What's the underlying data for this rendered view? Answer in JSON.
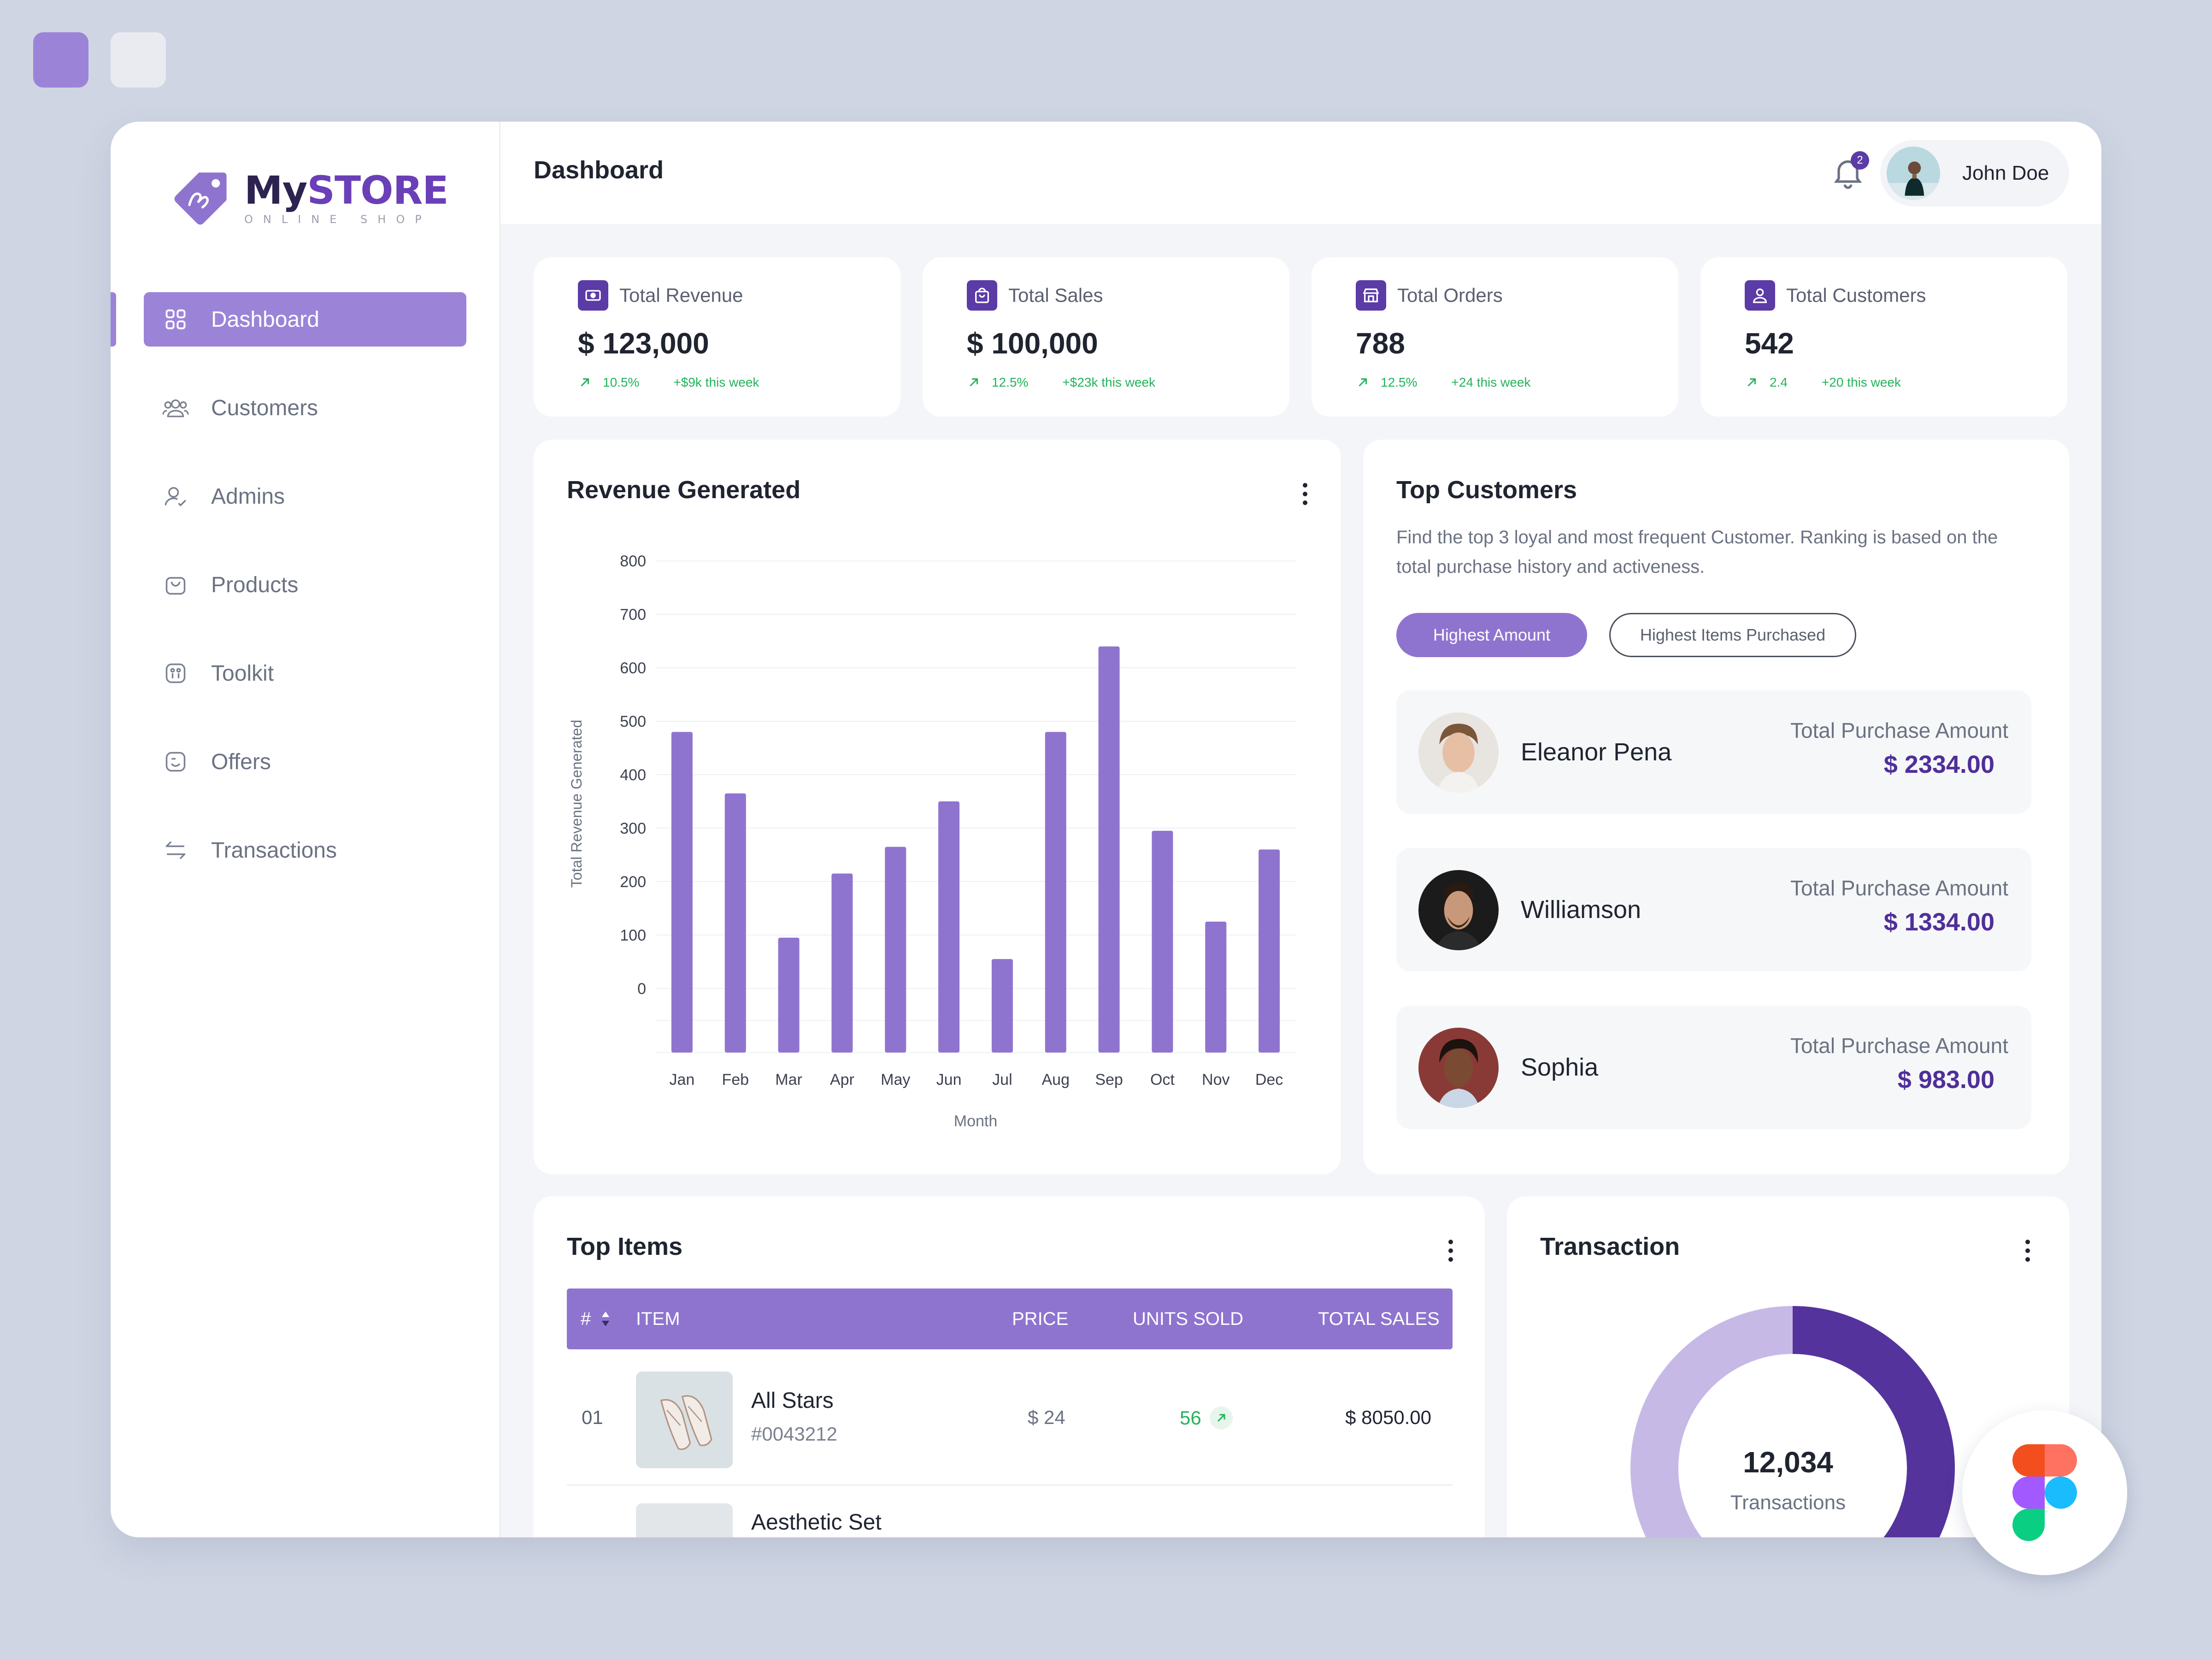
{
  "brand": {
    "name_a": "My",
    "name_b": "STORE",
    "tagline": "ONLINE SHOP"
  },
  "nav": [
    {
      "label": "Dashboard",
      "icon": "grid-icon",
      "active": true
    },
    {
      "label": "Customers",
      "icon": "users-icon"
    },
    {
      "label": "Admins",
      "icon": "admin-icon"
    },
    {
      "label": "Products",
      "icon": "bag-icon"
    },
    {
      "label": "Toolkit",
      "icon": "toolkit-icon"
    },
    {
      "label": "Offers",
      "icon": "offer-icon"
    },
    {
      "label": "Transactions",
      "icon": "swap-icon"
    }
  ],
  "header": {
    "title": "Dashboard",
    "notifications": "2",
    "user": "John Doe"
  },
  "stats": [
    {
      "label": "Total Revenue",
      "value": "$ 123,000",
      "pct": "10.5%",
      "week": "+$9k this week",
      "icon": "money-icon"
    },
    {
      "label": "Total Sales",
      "value": "$ 100,000",
      "pct": "12.5%",
      "week": "+$23k this week",
      "icon": "shopping-bag-icon"
    },
    {
      "label": "Total Orders",
      "value": "788",
      "pct": "12.5%",
      "week": "+24 this week",
      "icon": "store-icon"
    },
    {
      "label": "Total Customers",
      "value": "542",
      "pct": "2.4",
      "week": "+20 this week",
      "icon": "person-icon"
    }
  ],
  "revenue": {
    "title": "Revenue Generated"
  },
  "chart_data": {
    "type": "bar",
    "categories": [
      "Jan",
      "Feb",
      "Mar",
      "Apr",
      "May",
      "Jun",
      "Jul",
      "Aug",
      "Sep",
      "Oct",
      "Nov",
      "Dec"
    ],
    "values": [
      480,
      365,
      95,
      215,
      265,
      350,
      55,
      480,
      640,
      295,
      125,
      260
    ],
    "yticks": [
      "800",
      "700",
      "600",
      "500",
      "400",
      "300",
      "200",
      "100",
      "0"
    ],
    "xlabel": "Month",
    "ylabel": "Total Revenue Generated",
    "ylim": [
      -120,
      820
    ],
    "color": "#8f74cf"
  },
  "top_customers": {
    "title": "Top Customers",
    "description": "Find the top 3 loyal and most frequent Customer. Ranking is based on the total purchase history and activeness.",
    "tab_active": "Highest Amount",
    "tab_other": "Highest Items Purchased",
    "customers": [
      {
        "name": "Eleanor Pena",
        "label": "Total Purchase Amount",
        "amount": "$ 2334.00"
      },
      {
        "name": "Williamson",
        "label": "Total Purchase Amount",
        "amount": "$ 1334.00"
      },
      {
        "name": "Sophia",
        "label": "Total Purchase Amount",
        "amount": "$ 983.00"
      }
    ]
  },
  "top_items": {
    "title": "Top Items",
    "columns": {
      "num": "#",
      "item": "ITEM",
      "price": "PRICE",
      "units": "UNITS SOLD",
      "total": "TOTAL SALES"
    },
    "rows": [
      {
        "num": "01",
        "name": "All Stars",
        "sku": "#0043212",
        "price": "$ 24",
        "units": "56",
        "total": "$ 8050.00"
      }
    ],
    "next_row_name": "Aesthetic Set"
  },
  "transaction": {
    "title": "Transaction",
    "count": "12,034",
    "label": "Transactions",
    "share": 0.52,
    "colors": {
      "primary": "#55339d",
      "secondary": "#c7b9e6"
    }
  },
  "colors": {
    "accent": "#9b84d8",
    "brand": "#5b3ba6",
    "positive": "#22b35b"
  }
}
